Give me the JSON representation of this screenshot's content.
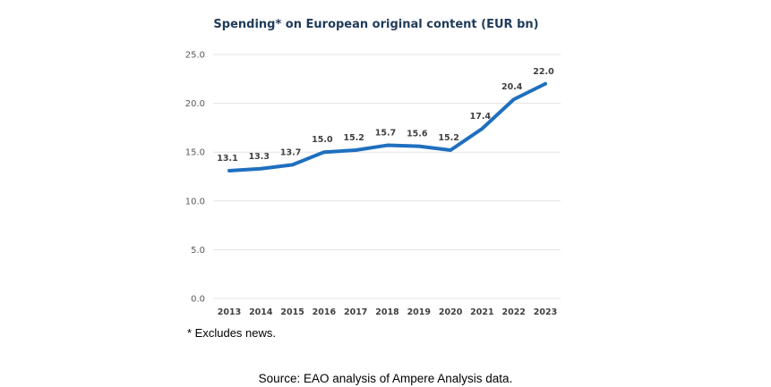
{
  "chart_data": {
    "type": "line",
    "title": "Spending* on European original content (EUR bn)",
    "xlabel": "",
    "ylabel": "",
    "categories": [
      "2013",
      "2014",
      "2015",
      "2016",
      "2017",
      "2018",
      "2019",
      "2020",
      "2021",
      "2022",
      "2023"
    ],
    "series": [
      {
        "name": "Spending on European original content",
        "values": [
          13.1,
          13.3,
          13.7,
          15.0,
          15.2,
          15.7,
          15.6,
          15.2,
          17.4,
          20.4,
          22.0
        ],
        "labels": [
          "13.1",
          "13.3",
          "13.7",
          "15.0",
          "15.2",
          "15.7",
          "15.6",
          "15.2",
          "17.4",
          "20.4",
          "22.0"
        ],
        "color": "#1f6fbf"
      }
    ],
    "yticks": [
      "0.0",
      "5.0",
      "10.0",
      "15.0",
      "20.0",
      "25.0"
    ],
    "ytick_values": [
      0,
      5,
      10,
      15,
      20,
      25
    ],
    "ylim": [
      0,
      25
    ],
    "grid": true,
    "legend": "none"
  },
  "footnote": "* Excludes news.",
  "source": "Source: EAO analysis of Ampere Analysis data."
}
